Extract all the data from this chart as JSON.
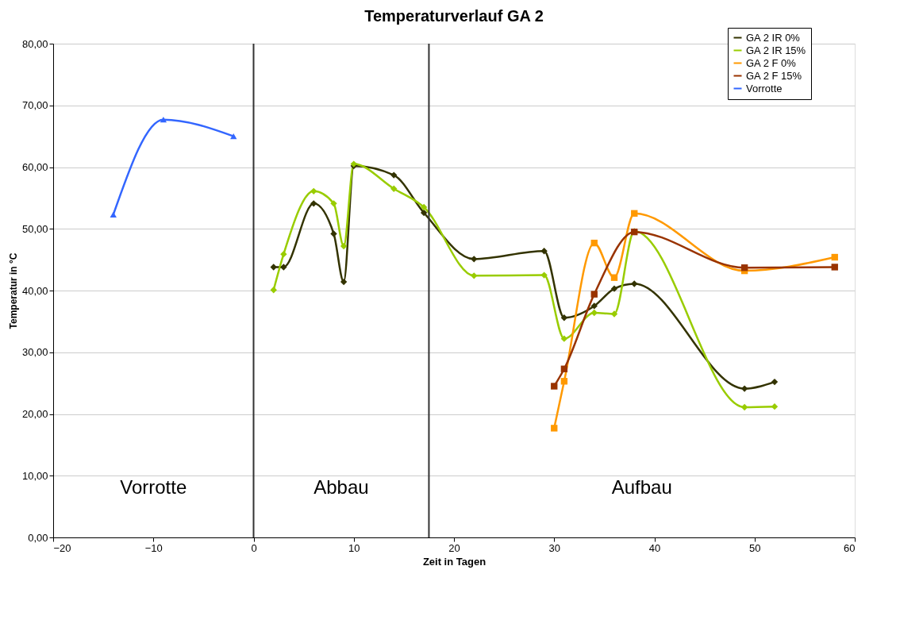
{
  "chart_data": {
    "type": "line",
    "title": "Temperaturverlauf GA 2",
    "xlabel": "Zeit in Tagen",
    "ylabel": "Temperatur in °C",
    "xlim": [
      -20,
      60
    ],
    "xticks": [
      -20,
      -10,
      0,
      10,
      20,
      30,
      40,
      50,
      60
    ],
    "ylim": [
      0,
      80
    ],
    "yticks": [
      {
        "value": 0,
        "label": "0,00"
      },
      {
        "value": 10,
        "label": "10,00"
      },
      {
        "value": 20,
        "label": "20,00"
      },
      {
        "value": 30,
        "label": "30,00"
      },
      {
        "value": 40,
        "label": "40,00"
      },
      {
        "value": 50,
        "label": "50,00"
      },
      {
        "value": 60,
        "label": "60,00"
      },
      {
        "value": 70,
        "label": "70,00"
      },
      {
        "value": 80,
        "label": "80,00"
      }
    ],
    "grid": "y",
    "legend": "top right",
    "series": [
      {
        "name": "GA 2 IR 0%",
        "color": "#333300",
        "marker": "diamond",
        "x": [
          2,
          3,
          6,
          8,
          9,
          10,
          14,
          17,
          22,
          29,
          31,
          34,
          36,
          38,
          49,
          52
        ],
        "values": [
          43.8,
          43.8,
          54.1,
          49.2,
          41.4,
          60.2,
          58.7,
          52.6,
          45.1,
          46.4,
          35.6,
          37.5,
          40.3,
          41.1,
          24.1,
          25.2
        ]
      },
      {
        "name": "GA 2 IR 15%",
        "color": "#99cc00",
        "marker": "diamond",
        "x": [
          2,
          3,
          6,
          8,
          9,
          10,
          14,
          17,
          22,
          29,
          31,
          34,
          36,
          38,
          49,
          52
        ],
        "values": [
          40.1,
          45.9,
          56.1,
          54.1,
          47.2,
          60.5,
          56.5,
          53.5,
          42.4,
          42.5,
          32.2,
          36.4,
          36.2,
          49.6,
          21.1,
          21.2
        ]
      },
      {
        "name": "GA 2 F 0%",
        "color": "#ff9900",
        "marker": "square",
        "x": [
          30,
          31,
          34,
          36,
          38,
          49,
          58
        ],
        "values": [
          17.7,
          25.3,
          47.7,
          42.1,
          52.5,
          43.2,
          45.4
        ]
      },
      {
        "name": "GA 2 F 15%",
        "color": "#993300",
        "marker": "square",
        "x": [
          30,
          31,
          34,
          38,
          49,
          58
        ],
        "values": [
          24.5,
          27.3,
          39.4,
          49.5,
          43.7,
          43.8
        ]
      },
      {
        "name": "Vorrotte",
        "color": "#3366ff",
        "marker": "triangle",
        "x": [
          -14,
          -9,
          -2
        ],
        "values": [
          52.3,
          67.7,
          65.0
        ]
      }
    ],
    "ref_lines": [
      {
        "axis": "x",
        "value": 0,
        "color": "#333333"
      },
      {
        "axis": "x",
        "value": 17.5,
        "color": "#333333"
      }
    ],
    "annotations": [
      "Vorrotte",
      "Abbau",
      "Aufbau"
    ]
  }
}
